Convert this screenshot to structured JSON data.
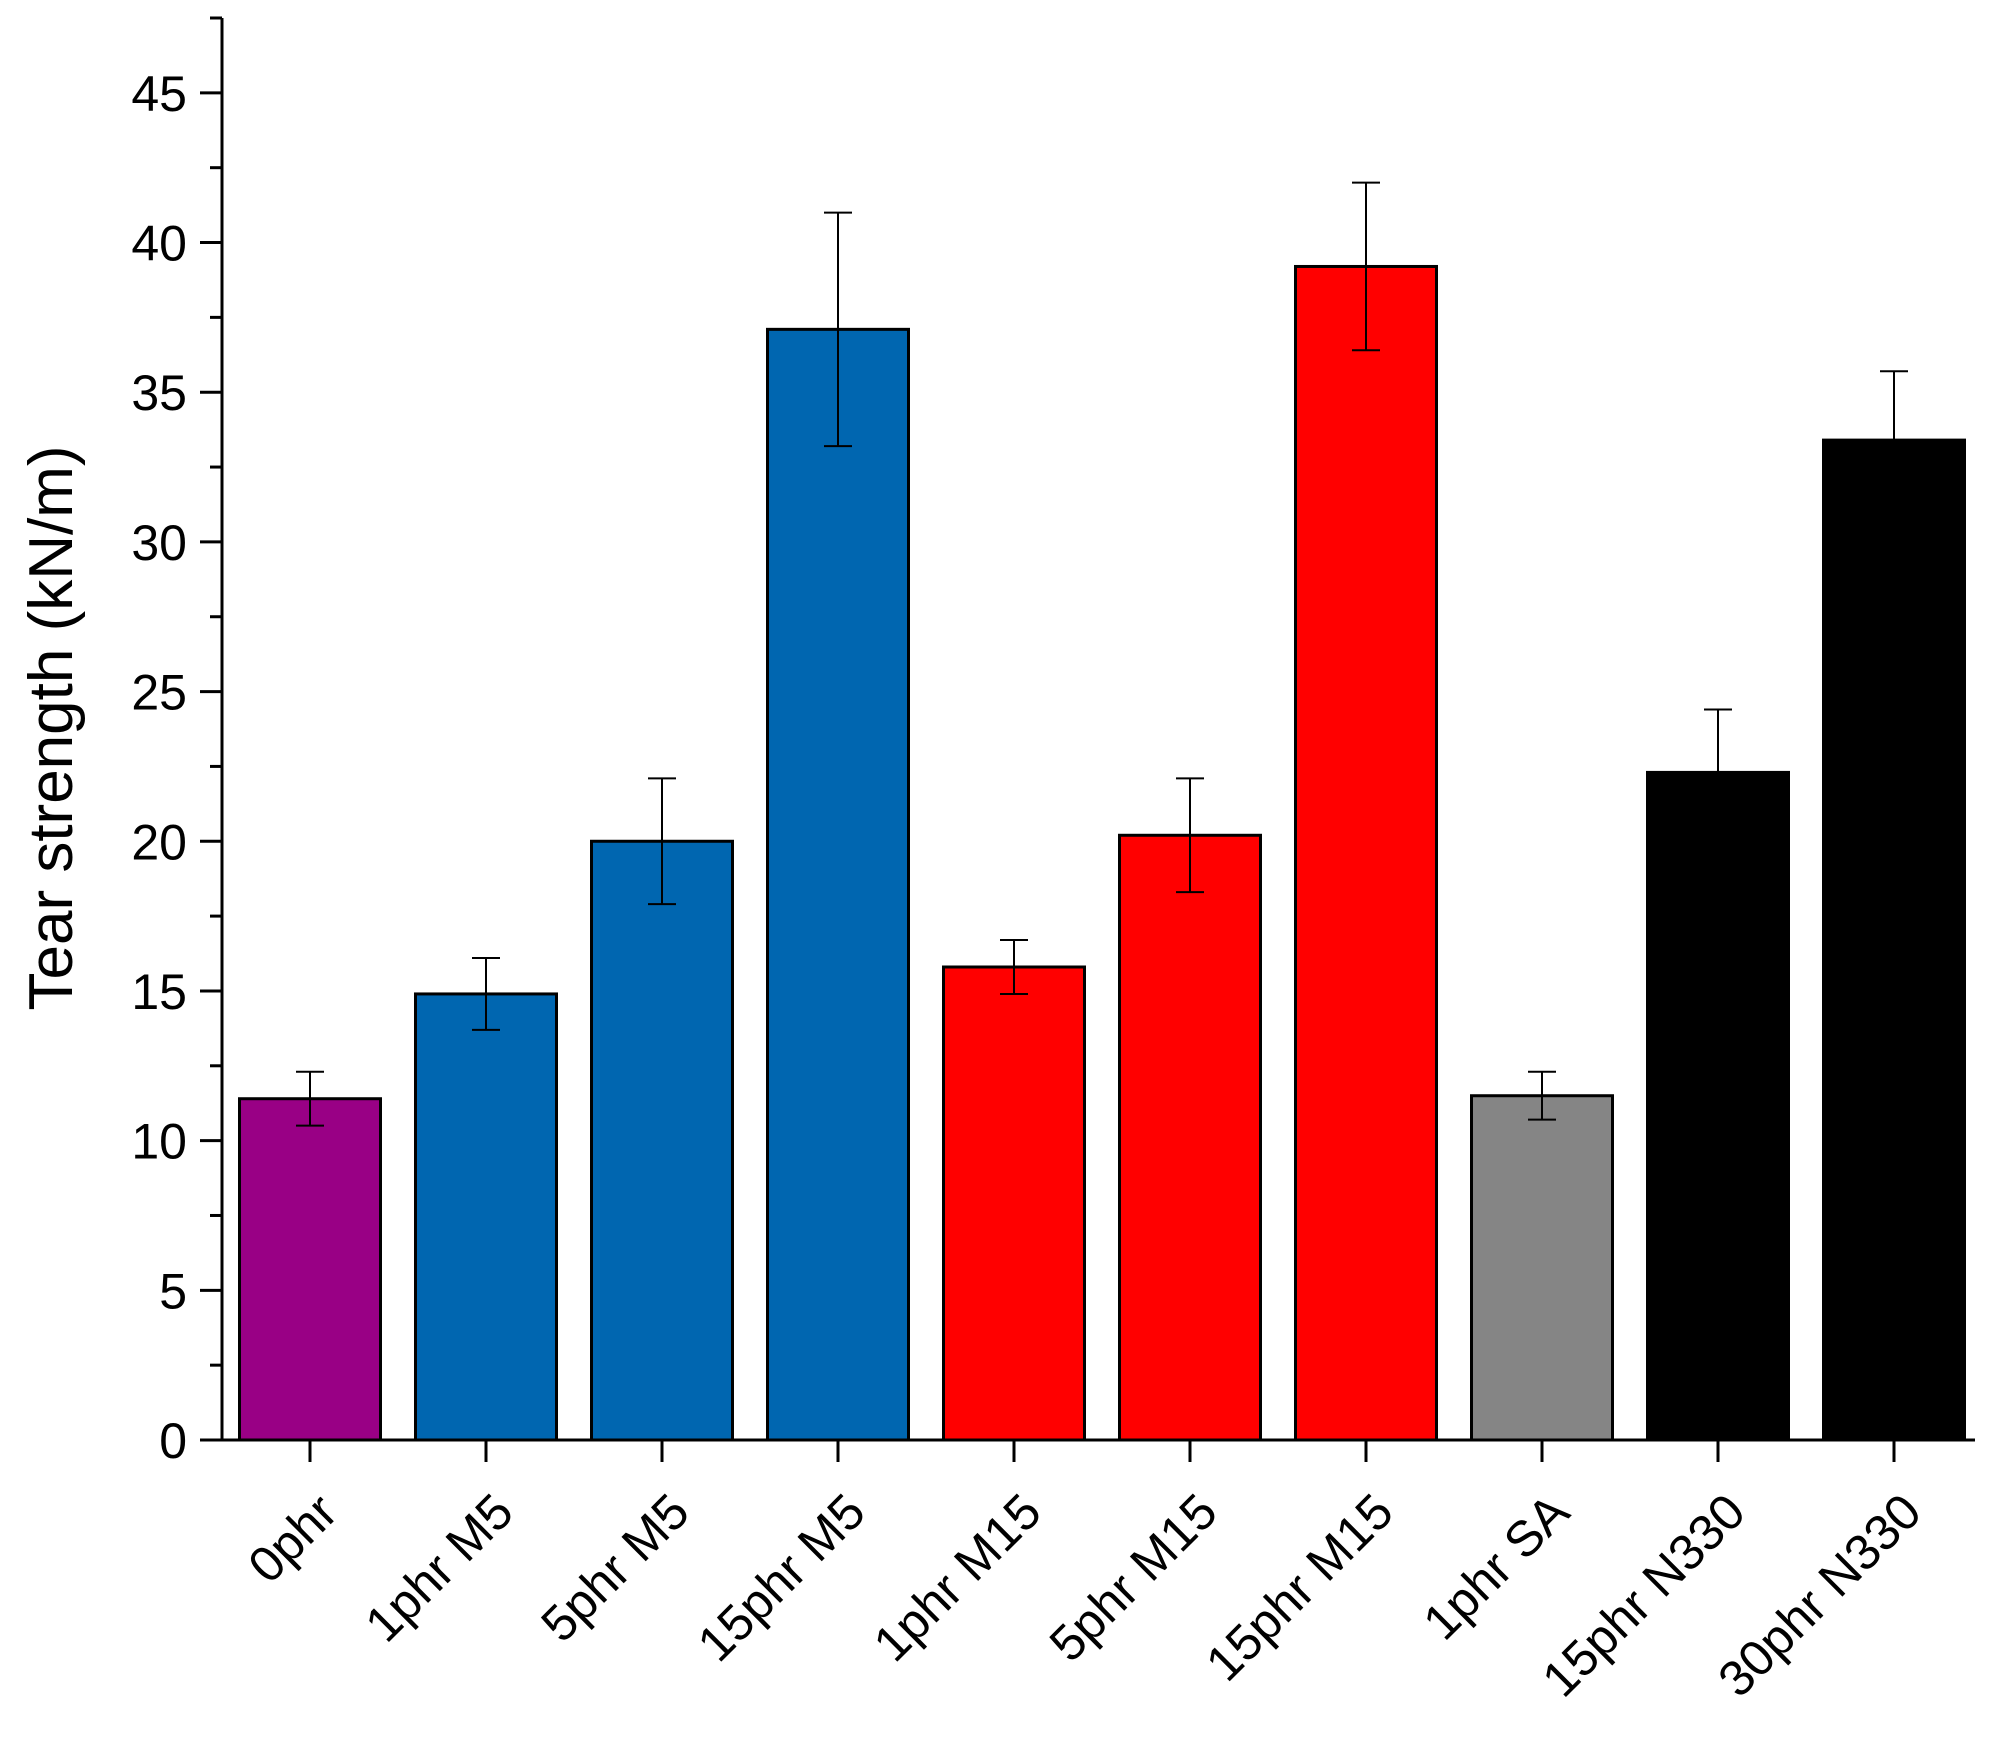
{
  "chart_data": {
    "type": "bar",
    "title": "",
    "xlabel": "",
    "ylabel": "Tear strength (kN/m)",
    "ylim": [
      0,
      47.5
    ],
    "yticks": [
      0,
      5,
      10,
      15,
      20,
      25,
      30,
      35,
      40,
      45
    ],
    "grid": false,
    "legend": "none",
    "categories": [
      "0phr",
      "1phr M5",
      "5phr M5",
      "15phr M5",
      "1phr M15",
      "5phr M15",
      "15phr M15",
      "1phr SA",
      "15phr N330",
      "30phr N330"
    ],
    "values": [
      11.4,
      14.9,
      20.0,
      37.1,
      15.8,
      20.2,
      39.2,
      11.5,
      22.3,
      33.4
    ],
    "errors": [
      0.9,
      1.2,
      2.1,
      3.9,
      0.9,
      1.9,
      2.8,
      0.8,
      2.1,
      2.3
    ],
    "colors": [
      "#990085",
      "#0066b0",
      "#0066b0",
      "#0066b0",
      "#ff0000",
      "#ff0000",
      "#ff0000",
      "#858585",
      "#000000",
      "#000000"
    ]
  }
}
